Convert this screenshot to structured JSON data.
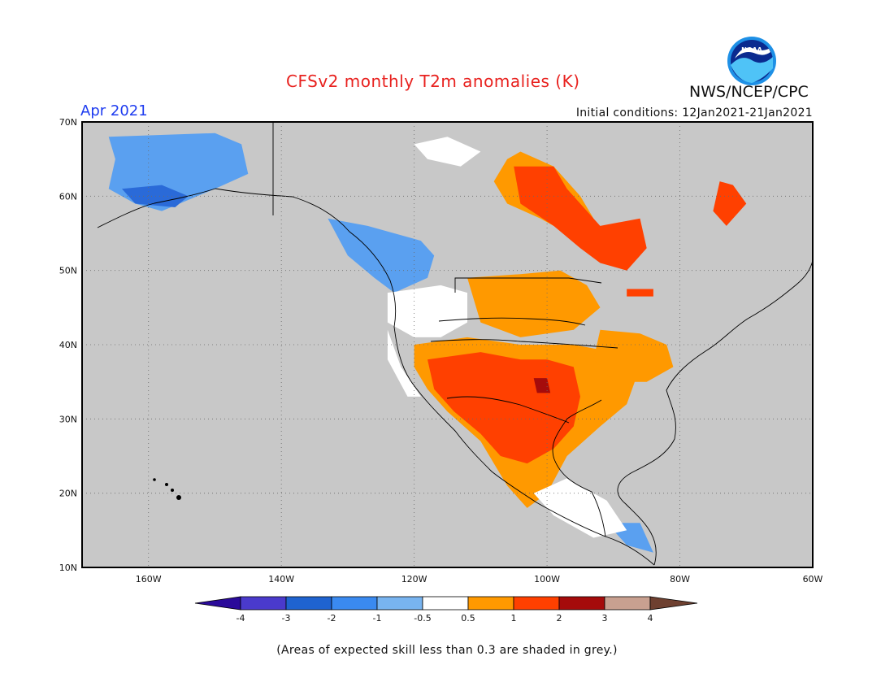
{
  "title": "CFSv2 monthly T2m anomalies (K)",
  "organization": "NWS/NCEP/CPC",
  "logo_text": "NOAA",
  "period": "Apr 2021",
  "initial_conditions": "Initial conditions: 12Jan2021-21Jan2021",
  "footnote": "(Areas of expected skill less than 0.3 are shaded in grey.)",
  "map": {
    "lon_range": [
      -170,
      -60
    ],
    "lat_range": [
      10,
      70
    ],
    "lat_ticks": [
      {
        "value": 70,
        "label": "70N"
      },
      {
        "value": 60,
        "label": "60N"
      },
      {
        "value": 50,
        "label": "50N"
      },
      {
        "value": 40,
        "label": "40N"
      },
      {
        "value": 30,
        "label": "30N"
      },
      {
        "value": 20,
        "label": "20N"
      },
      {
        "value": 10,
        "label": "10N"
      }
    ],
    "lon_ticks": [
      {
        "value": -160,
        "label": "160W"
      },
      {
        "value": -140,
        "label": "140W"
      },
      {
        "value": -120,
        "label": "120W"
      },
      {
        "value": -100,
        "label": "100W"
      },
      {
        "value": -80,
        "label": "80W"
      },
      {
        "value": -60,
        "label": "60W"
      }
    ],
    "grid": "dotted",
    "background_color": "#c8c8c8"
  },
  "colorbar": {
    "labels": [
      "-4",
      "-3",
      "-2",
      "-1",
      "-0.5",
      "0.5",
      "1",
      "2",
      "3",
      "4"
    ],
    "colors": [
      "#2a0a9a",
      "#4a3acc",
      "#1f63d0",
      "#3a8af0",
      "#78b4f0",
      "#ffffff",
      "#ff9900",
      "#ff4000",
      "#a50b0b",
      "#c8a090",
      "#6e4030"
    ]
  },
  "anomaly_regions": [
    {
      "name": "alaska-west",
      "class": "-1",
      "color": "#5aa0f0",
      "polygon": [
        [
          -166,
          68
        ],
        [
          -150,
          68.5
        ],
        [
          -146,
          67
        ],
        [
          -145,
          63
        ],
        [
          -150,
          61
        ],
        [
          -158,
          58
        ],
        [
          -162,
          59
        ],
        [
          -166,
          61
        ],
        [
          -165,
          65
        ]
      ]
    },
    {
      "name": "alaska-southwest",
      "class": "-2",
      "color": "#2a6ad8",
      "polygon": [
        [
          -164,
          61
        ],
        [
          -158,
          61.5
        ],
        [
          -154,
          60
        ],
        [
          -156,
          58.5
        ],
        [
          -162,
          59
        ]
      ]
    },
    {
      "name": "pacific-northwest-cool",
      "class": "-1",
      "color": "#5aa0f0",
      "polygon": [
        [
          -133,
          57
        ],
        [
          -127,
          56
        ],
        [
          -123,
          55
        ],
        [
          -119,
          54
        ],
        [
          -117,
          52
        ],
        [
          -118,
          49
        ],
        [
          -123,
          47
        ],
        [
          -126,
          49
        ],
        [
          -130,
          52
        ]
      ]
    },
    {
      "name": "west-near-normal",
      "class": "white",
      "color": "#ffffff",
      "polygon": [
        [
          -124,
          47
        ],
        [
          -116,
          48
        ],
        [
          -112,
          47
        ],
        [
          -112,
          43
        ],
        [
          -116,
          41
        ],
        [
          -120,
          41
        ],
        [
          -124,
          43
        ]
      ]
    },
    {
      "name": "north-canada-near-normal",
      "class": "white",
      "color": "#ffffff",
      "polygon": [
        [
          -120,
          67
        ],
        [
          -115,
          68
        ],
        [
          -110,
          66
        ],
        [
          -113,
          64
        ],
        [
          -118,
          65
        ]
      ]
    },
    {
      "name": "north-canada-warm",
      "class": "0.5",
      "color": "#ff9900",
      "polygon": [
        [
          -106,
          65
        ],
        [
          -104,
          66
        ],
        [
          -99,
          64
        ],
        [
          -95,
          60
        ],
        [
          -93,
          57
        ],
        [
          -97,
          55
        ],
        [
          -101,
          57
        ],
        [
          -106,
          59
        ],
        [
          -108,
          62
        ]
      ]
    },
    {
      "name": "hudson-bay-west-warm",
      "class": "1",
      "color": "#ff4000",
      "polygon": [
        [
          -105,
          64
        ],
        [
          -99,
          64
        ],
        [
          -97,
          61
        ],
        [
          -94,
          58
        ],
        [
          -91,
          55
        ],
        [
          -89,
          53
        ],
        [
          -92,
          51
        ],
        [
          -95,
          53
        ],
        [
          -99,
          56
        ],
        [
          -104,
          59
        ]
      ]
    },
    {
      "name": "ontario-warm",
      "class": "1",
      "color": "#ff4000",
      "polygon": [
        [
          -92,
          56
        ],
        [
          -86,
          57
        ],
        [
          -85,
          53
        ],
        [
          -88,
          50
        ],
        [
          -92,
          51
        ]
      ]
    },
    {
      "name": "quebec-warm",
      "class": "1",
      "color": "#ff4000",
      "polygon": [
        [
          -74,
          62
        ],
        [
          -72,
          61.5
        ],
        [
          -70,
          59
        ],
        [
          -73,
          56
        ],
        [
          -75,
          58
        ]
      ]
    },
    {
      "name": "northern-plains-warm",
      "class": "0.5",
      "color": "#ff9900",
      "polygon": [
        [
          -112,
          49
        ],
        [
          -104,
          49.5
        ],
        [
          -98,
          50
        ],
        [
          -94,
          48
        ],
        [
          -92,
          45
        ],
        [
          -96,
          42
        ],
        [
          -104,
          41
        ],
        [
          -110,
          43
        ]
      ]
    },
    {
      "name": "southwest-warm",
      "class": "0.5",
      "color": "#ff9900",
      "polygon": [
        [
          -120,
          40
        ],
        [
          -112,
          41
        ],
        [
          -104,
          40
        ],
        [
          -96,
          40
        ],
        [
          -90,
          39
        ],
        [
          -86,
          37
        ],
        [
          -88,
          32
        ],
        [
          -92,
          29
        ],
        [
          -97,
          25
        ],
        [
          -100,
          20
        ],
        [
          -103,
          18
        ],
        [
          -106,
          21
        ],
        [
          -108,
          24
        ],
        [
          -110,
          27
        ],
        [
          -115,
          31
        ],
        [
          -118,
          34
        ],
        [
          -120,
          37
        ]
      ]
    },
    {
      "name": "southwest-strong-warm",
      "class": "1",
      "color": "#ff4000",
      "polygon": [
        [
          -118,
          38
        ],
        [
          -110,
          39
        ],
        [
          -104,
          38
        ],
        [
          -100,
          38
        ],
        [
          -96,
          37
        ],
        [
          -95,
          33
        ],
        [
          -96,
          29
        ],
        [
          -99,
          26
        ],
        [
          -103,
          24
        ],
        [
          -107,
          25
        ],
        [
          -110,
          28
        ],
        [
          -114,
          31
        ],
        [
          -117,
          34
        ]
      ]
    },
    {
      "name": "texas-hotspot",
      "class": "2",
      "color": "#a50b0b",
      "polygon": [
        [
          -102,
          35.5
        ],
        [
          -100,
          35.5
        ],
        [
          -99.5,
          33.5
        ],
        [
          -101.5,
          33.5
        ]
      ]
    },
    {
      "name": "ohio-valley-warm",
      "class": "0.5",
      "color": "#ff9900",
      "polygon": [
        [
          -92,
          42
        ],
        [
          -86,
          41.5
        ],
        [
          -82,
          40
        ],
        [
          -81,
          37
        ],
        [
          -85,
          35
        ],
        [
          -90,
          35
        ],
        [
          -93,
          38
        ]
      ]
    },
    {
      "name": "great-lakes-warm",
      "class": "1",
      "color": "#ff4000",
      "polygon": [
        [
          -88,
          47.5
        ],
        [
          -84,
          47.5
        ],
        [
          -84,
          46.5
        ],
        [
          -88,
          46.5
        ]
      ]
    },
    {
      "name": "caribbean-cool",
      "class": "-1",
      "color": "#5aa0f0",
      "polygon": [
        [
          -91,
          16
        ],
        [
          -86,
          16
        ],
        [
          -84,
          12
        ],
        [
          -88,
          13
        ]
      ]
    }
  ],
  "near_normal_patches": [
    {
      "name": "yucatan-near-normal",
      "polygon": [
        [
          -97,
          22
        ],
        [
          -91,
          19
        ],
        [
          -88,
          15
        ],
        [
          -93,
          14
        ],
        [
          -99,
          17
        ],
        [
          -102,
          20
        ]
      ]
    },
    {
      "name": "baja-near-normal",
      "polygon": [
        [
          -124,
          42
        ],
        [
          -122,
          37
        ],
        [
          -119,
          33
        ],
        [
          -121,
          33
        ],
        [
          -124,
          38
        ]
      ]
    }
  ]
}
